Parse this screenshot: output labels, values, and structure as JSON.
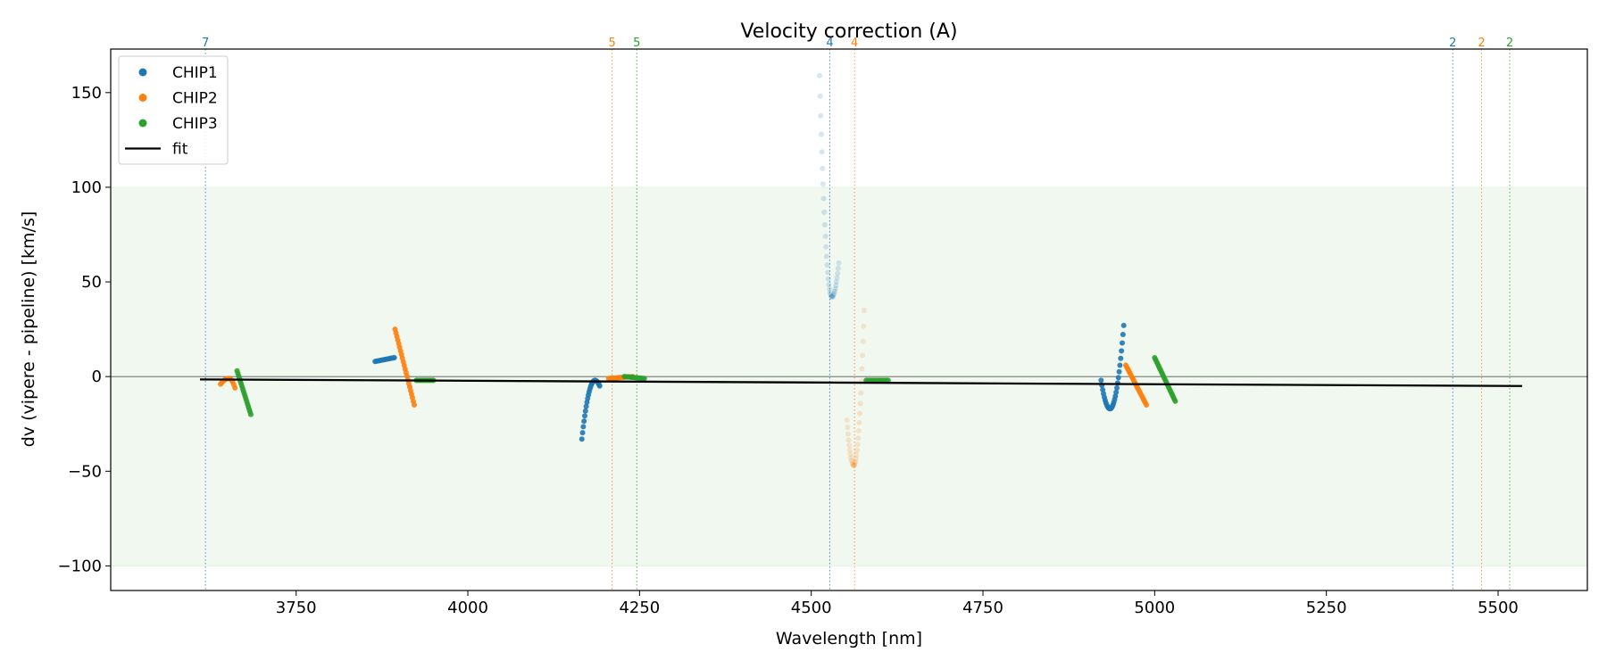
{
  "chart_data": {
    "type": "scatter",
    "title": "Velocity correction (A)",
    "xlabel": "Wavelength [nm]",
    "ylabel": "dv (vipere - pipeline) [km/s]",
    "xlim": [
      3480,
      5630
    ],
    "ylim": [
      -113,
      173
    ],
    "x_ticks": [
      3750,
      4000,
      4250,
      4500,
      4750,
      5000,
      5250,
      5500
    ],
    "x_tick_labels": [
      "3750",
      "4000",
      "4250",
      "4500",
      "4750",
      "5000",
      "5250",
      "5500"
    ],
    "y_ticks": [
      -100,
      -50,
      0,
      50,
      100,
      150
    ],
    "y_tick_labels": [
      "−100",
      "−50",
      "0",
      "50",
      "100",
      "150"
    ],
    "accepted_band": [
      -100,
      100
    ],
    "zero_line": 0,
    "legend": {
      "position": "top-left",
      "entries": [
        {
          "label": "CHIP1",
          "kind": "marker",
          "color": "#1f77b4"
        },
        {
          "label": "CHIP2",
          "kind": "marker",
          "color": "#ff7f0e"
        },
        {
          "label": "CHIP3",
          "kind": "marker",
          "color": "#2ca02c"
        },
        {
          "label": "fit",
          "kind": "line",
          "color": "#000000"
        }
      ]
    },
    "series": [
      {
        "name": "CHIP1",
        "color": "#1f77b4",
        "segments": [
          {
            "shape": "line",
            "x0": 3865,
            "y0": 8,
            "x1": 3893,
            "y1": 10,
            "n": 16,
            "faded": false
          },
          {
            "shape": "cup",
            "x0": 4166,
            "y0": -33,
            "xm": 4185,
            "ym": -2,
            "x1": 4192,
            "y1": -5,
            "n": 26,
            "faded": false
          },
          {
            "shape": "cup",
            "x0": 4512,
            "y0": 159,
            "xm": 4530,
            "ym": 42,
            "x1": 4540,
            "y1": 60,
            "n": 34,
            "faded": true
          },
          {
            "shape": "cup",
            "x0": 4922,
            "y0": -2,
            "xm": 4935,
            "ym": -17,
            "x1": 4955,
            "y1": 27,
            "n": 30,
            "faded": false
          }
        ]
      },
      {
        "name": "CHIP2",
        "color": "#ff7f0e",
        "segments": [
          {
            "shape": "cup",
            "x0": 3640,
            "y0": -4,
            "xm": 3652,
            "ym": -1,
            "x1": 3661,
            "y1": -6,
            "n": 12,
            "faded": false
          },
          {
            "shape": "line",
            "x0": 3894,
            "y0": 25,
            "x1": 3922,
            "y1": -15,
            "n": 22,
            "faded": false
          },
          {
            "shape": "line",
            "x0": 4205,
            "y0": -1,
            "x1": 4240,
            "y1": 0,
            "n": 16,
            "faded": false
          },
          {
            "shape": "cup",
            "x0": 4552,
            "y0": -23,
            "xm": 4562,
            "ym": -47,
            "x1": 4577,
            "y1": 35,
            "n": 32,
            "faded": true
          },
          {
            "shape": "line",
            "x0": 4958,
            "y0": 6,
            "x1": 4988,
            "y1": -15,
            "n": 22,
            "faded": false
          }
        ]
      },
      {
        "name": "CHIP3",
        "color": "#2ca02c",
        "segments": [
          {
            "shape": "line",
            "x0": 3664,
            "y0": 3,
            "x1": 3684,
            "y1": -20,
            "n": 18,
            "faded": false
          },
          {
            "shape": "line",
            "x0": 3925,
            "y0": -2,
            "x1": 3950,
            "y1": -2,
            "n": 12,
            "faded": false
          },
          {
            "shape": "line",
            "x0": 4228,
            "y0": 0,
            "x1": 4257,
            "y1": -1,
            "n": 12,
            "faded": false
          },
          {
            "shape": "line",
            "x0": 4580,
            "y0": -2,
            "x1": 4612,
            "y1": -2,
            "n": 14,
            "faded": false
          },
          {
            "shape": "line",
            "x0": 5000,
            "y0": 10,
            "x1": 5030,
            "y1": -13,
            "n": 22,
            "faded": false
          }
        ]
      }
    ],
    "fit": {
      "name": "fit",
      "color": "#000000",
      "x": [
        3610,
        5535
      ],
      "y": [
        -1.5,
        -5
      ]
    },
    "order_markers": [
      {
        "x": 3618,
        "label": "7",
        "color": "#1f77b4"
      },
      {
        "x": 4210,
        "label": "5",
        "color": "#ff7f0e"
      },
      {
        "x": 4246,
        "label": "5",
        "color": "#2ca02c"
      },
      {
        "x": 4527,
        "label": "4",
        "color": "#1f77b4"
      },
      {
        "x": 4563,
        "label": "4",
        "color": "#ff7f0e"
      },
      {
        "x": 5434,
        "label": "2",
        "color": "#1f77b4"
      },
      {
        "x": 5476,
        "label": "2",
        "color": "#ff7f0e"
      },
      {
        "x": 5517,
        "label": "2",
        "color": "#2ca02c"
      }
    ]
  }
}
